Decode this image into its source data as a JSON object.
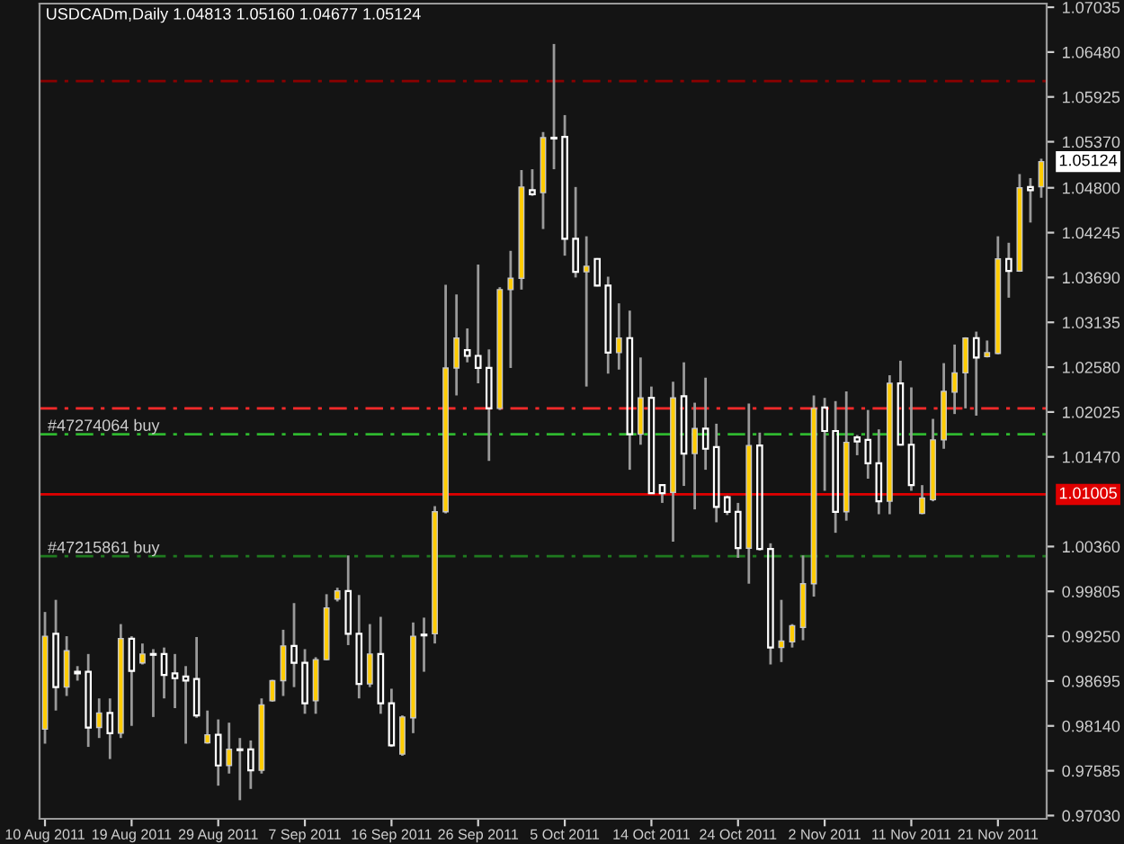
{
  "chart_data": {
    "type": "candlestick",
    "title": "USDCADm,Daily 1.04813 1.05160 1.04677 1.05124",
    "categories": [
      "10 Aug 2011",
      null,
      null,
      null,
      null,
      null,
      null,
      null,
      "19 Aug 2011",
      null,
      null,
      null,
      null,
      null,
      null,
      null,
      "29 Aug 2011",
      null,
      null,
      null,
      null,
      null,
      null,
      null,
      "7 Sep 2011",
      null,
      null,
      null,
      null,
      null,
      null,
      null,
      "16 Sep 2011",
      null,
      null,
      null,
      null,
      null,
      null,
      null,
      "26 Sep 2011",
      null,
      null,
      null,
      null,
      null,
      null,
      null,
      "5 Oct 2011",
      null,
      null,
      null,
      null,
      null,
      null,
      null,
      "14 Oct 2011",
      null,
      null,
      null,
      null,
      null,
      null,
      null,
      "24 Oct 2011",
      null,
      null,
      null,
      null,
      null,
      null,
      null,
      "2 Nov 2011",
      null,
      null,
      null,
      null,
      null,
      null,
      null,
      "11 Nov 2011",
      null,
      null,
      null,
      null,
      null,
      null,
      null,
      "21 Nov 2011",
      null,
      null,
      null,
      null
    ],
    "ohlc": [
      [
        0.981,
        0.9955,
        0.9792,
        0.9925
      ],
      [
        0.9928,
        0.997,
        0.9833,
        0.9862
      ],
      [
        0.9862,
        0.9925,
        0.9851,
        0.9907
      ],
      [
        0.9881,
        0.9888,
        0.987,
        0.9879
      ],
      [
        0.9881,
        0.9903,
        0.9788,
        0.9812
      ],
      [
        0.9812,
        0.9848,
        0.9799,
        0.983
      ],
      [
        0.983,
        0.9848,
        0.9773,
        0.9805
      ],
      [
        0.9805,
        0.994,
        0.9799,
        0.9922
      ],
      [
        0.9922,
        0.9925,
        0.9814,
        0.9882
      ],
      [
        0.9892,
        0.9916,
        0.989,
        0.9903
      ],
      [
        0.9903,
        0.9909,
        0.9825,
        0.9902
      ],
      [
        0.9903,
        0.9911,
        0.9848,
        0.9877
      ],
      [
        0.9879,
        0.9903,
        0.9836,
        0.9873
      ],
      [
        0.9875,
        0.9888,
        0.9792,
        0.987
      ],
      [
        0.9872,
        0.9924,
        0.9824,
        0.9827
      ],
      [
        0.9793,
        0.9833,
        0.9792,
        0.9803
      ],
      [
        0.9803,
        0.9822,
        0.974,
        0.9765
      ],
      [
        0.9765,
        0.9818,
        0.9755,
        0.9785
      ],
      [
        0.9785,
        0.9799,
        0.9722,
        0.9784
      ],
      [
        0.9785,
        0.9796,
        0.9736,
        0.9759
      ],
      [
        0.9759,
        0.9848,
        0.9755,
        0.984
      ],
      [
        0.9845,
        0.9871,
        0.9844,
        0.987
      ],
      [
        0.987,
        0.9933,
        0.9851,
        0.9913
      ],
      [
        0.9913,
        0.9966,
        0.9862,
        0.9892
      ],
      [
        0.9892,
        0.9909,
        0.9829,
        0.9842
      ],
      [
        0.9845,
        0.9899,
        0.9829,
        0.9896
      ],
      [
        0.9896,
        0.9977,
        0.9895,
        0.996
      ],
      [
        0.9971,
        0.9985,
        0.9968,
        0.9981
      ],
      [
        0.9981,
        1.0025,
        0.9914,
        0.9928
      ],
      [
        0.9928,
        0.9976,
        0.9848,
        0.9866
      ],
      [
        0.9866,
        0.994,
        0.9862,
        0.9903
      ],
      [
        0.9903,
        0.9949,
        0.9829,
        0.9842
      ],
      [
        0.9842,
        0.986,
        0.9788,
        0.979
      ],
      [
        0.9779,
        0.9827,
        0.9777,
        0.9825
      ],
      [
        0.9824,
        0.9942,
        0.9805,
        0.9925
      ],
      [
        0.9927,
        0.9948,
        0.9881,
        0.9926
      ],
      [
        0.9928,
        1.0086,
        0.9916,
        1.0079
      ],
      [
        1.0079,
        1.036,
        1.0077,
        1.0257
      ],
      [
        1.0257,
        1.0348,
        1.0223,
        1.0294
      ],
      [
        1.0279,
        1.0306,
        1.0264,
        1.0272
      ],
      [
        1.0272,
        1.0385,
        1.0238,
        1.0257
      ],
      [
        1.0257,
        1.028,
        1.0142,
        1.0207
      ],
      [
        1.0207,
        1.0357,
        1.0205,
        1.0354
      ],
      [
        1.0354,
        1.0402,
        1.0257,
        1.0368
      ],
      [
        1.0368,
        1.0502,
        1.0354,
        1.0481
      ],
      [
        1.0477,
        1.0503,
        1.047,
        1.0472
      ],
      [
        1.0474,
        1.0549,
        1.0429,
        1.0542
      ],
      [
        1.0542,
        1.0658,
        1.0503,
        1.0541
      ],
      [
        1.0543,
        1.057,
        1.0396,
        1.0417
      ],
      [
        1.0417,
        1.0481,
        1.0369,
        1.0376
      ],
      [
        1.0376,
        1.042,
        1.0234,
        1.0383
      ],
      [
        1.0392,
        1.0393,
        1.0358,
        1.0359
      ],
      [
        1.0359,
        1.037,
        1.025,
        1.0276
      ],
      [
        1.0276,
        1.0337,
        1.0255,
        1.0294
      ],
      [
        1.0294,
        1.0328,
        1.0131,
        1.0175
      ],
      [
        1.0175,
        1.027,
        1.0162,
        1.022
      ],
      [
        1.022,
        1.0234,
        1.0101,
        1.0102
      ],
      [
        1.0112,
        1.0113,
        1.009,
        1.0102
      ],
      [
        1.0103,
        1.024,
        1.0042,
        1.022
      ],
      [
        1.0222,
        1.0264,
        1.0111,
        1.0151
      ],
      [
        1.0151,
        1.0214,
        1.0082,
        1.0182
      ],
      [
        1.0182,
        1.0245,
        1.0131,
        1.0157
      ],
      [
        1.0159,
        1.0188,
        1.0066,
        1.0085
      ],
      [
        1.0097,
        1.0099,
        1.0075,
        1.0079
      ],
      [
        1.0079,
        1.009,
        1.0022,
        1.0034
      ],
      [
        1.0034,
        1.0213,
        0.999,
        1.0161
      ],
      [
        1.0161,
        1.0177,
        1.0031,
        1.0033
      ],
      [
        1.0033,
        1.004,
        0.989,
        0.9911
      ],
      [
        0.9911,
        0.997,
        0.9893,
        0.9919
      ],
      [
        0.9918,
        0.994,
        0.9911,
        0.9938
      ],
      [
        0.9936,
        1.0025,
        0.992,
        0.999
      ],
      [
        0.999,
        1.0223,
        0.9974,
        1.0207
      ],
      [
        1.0208,
        1.022,
        1.0105,
        1.0179
      ],
      [
        1.0179,
        1.0216,
        1.0053,
        1.0079
      ],
      [
        1.0079,
        1.0228,
        1.0068,
        1.0165
      ],
      [
        1.0171,
        1.0174,
        1.0149,
        1.0166
      ],
      [
        1.0168,
        1.0205,
        1.012,
        1.0139
      ],
      [
        1.0139,
        1.0181,
        1.0076,
        1.0092
      ],
      [
        1.0092,
        1.0248,
        1.0076,
        1.0238
      ],
      [
        1.0238,
        1.0266,
        1.0161,
        1.0162
      ],
      [
        1.0162,
        1.0233,
        1.0105,
        1.0112
      ],
      [
        1.0077,
        1.0112,
        1.0076,
        1.0096
      ],
      [
        1.0094,
        1.0194,
        1.0092,
        1.0168
      ],
      [
        1.0168,
        1.0263,
        1.0157,
        1.0228
      ],
      [
        1.0227,
        1.0286,
        1.02,
        1.0251
      ],
      [
        1.0251,
        1.0295,
        1.0207,
        1.0294
      ],
      [
        1.0294,
        1.0302,
        1.0198,
        1.027
      ],
      [
        1.0271,
        1.0291,
        1.027,
        1.0276
      ],
      [
        1.0275,
        1.042,
        1.0274,
        1.0392
      ],
      [
        1.0392,
        1.0412,
        1.0344,
        1.0377
      ],
      [
        1.0377,
        1.0497,
        1.0376,
        1.048
      ],
      [
        1.0481,
        1.0492,
        1.0437,
        1.0477
      ],
      [
        1.04813,
        1.0516,
        1.04677,
        1.05124
      ]
    ],
    "colors": [
      "#ffcc00",
      "#ffffff",
      "#ffcc00",
      "#ffffff",
      "#ffffff",
      "#ffcc00",
      "#ffffff",
      "#ffcc00",
      "#ffffff",
      "#ffcc00",
      "#ffffff",
      "#ffffff",
      "#ffffff",
      "#ffffff",
      "#ffffff",
      "#ffcc00",
      "#ffffff",
      "#ffcc00",
      "#ffffff",
      "#ffffff",
      "#ffcc00",
      "#ffcc00",
      "#ffcc00",
      "#ffffff",
      "#ffffff",
      "#ffcc00",
      "#ffcc00",
      "#ffcc00",
      "#ffffff",
      "#ffffff",
      "#ffcc00",
      "#ffffff",
      "#ffffff",
      "#ffcc00",
      "#ffcc00",
      "#ffffff",
      "#ffcc00",
      "#ffcc00",
      "#ffcc00",
      "#ffffff",
      "#ffffff",
      "#ffffff",
      "#ffcc00",
      "#ffcc00",
      "#ffcc00",
      "#ffffff",
      "#ffcc00",
      "#ffffff",
      "#ffffff",
      "#ffffff",
      "#ffcc00",
      "#ffffff",
      "#ffffff",
      "#ffcc00",
      "#ffffff",
      "#ffcc00",
      "#ffffff",
      "#ffffff",
      "#ffcc00",
      "#ffffff",
      "#ffcc00",
      "#ffffff",
      "#ffffff",
      "#ffffff",
      "#ffffff",
      "#ffcc00",
      "#ffffff",
      "#ffffff",
      "#ffcc00",
      "#ffcc00",
      "#ffcc00",
      "#ffcc00",
      "#ffffff",
      "#ffffff",
      "#ffcc00",
      "#ffffff",
      "#ffffff",
      "#ffffff",
      "#ffcc00",
      "#ffffff",
      "#ffffff",
      "#ffcc00",
      "#ffcc00",
      "#ffcc00",
      "#ffcc00",
      "#ffcc00",
      "#ffffff",
      "#ffcc00",
      "#ffcc00",
      "#ffffff",
      "#ffcc00",
      "#ffffff",
      "#ffcc00"
    ],
    "ylim": [
      0.9699,
      1.0708
    ],
    "yticks": [
      1.07035,
      {
        "value": 1.0648,
        "label": "1.06480"
      },
      1.05925,
      {
        "value": 1.0537,
        "label": "1.05370"
      },
      {
        "value": 1.048,
        "label": "1.04800"
      },
      1.04245,
      {
        "value": 1.0369,
        "label": "1.03690"
      },
      1.03135,
      {
        "value": 1.0258,
        "label": "1.02580"
      },
      1.02025,
      {
        "value": 1.0147,
        "label": "1.01470"
      },
      {
        "value": 1.0036,
        "label": "1.00360"
      },
      0.99805,
      {
        "value": 0.9925,
        "label": "0.99250"
      },
      0.98695,
      {
        "value": 0.9814,
        "label": "0.98140"
      },
      0.97585,
      {
        "value": 0.9703,
        "label": "0.97030"
      }
    ],
    "ref_lines": [
      {
        "axis": "y",
        "value": 1.0612,
        "color": "#8b0000",
        "line_style": "dashdot"
      },
      {
        "axis": "y",
        "value": 1.0207,
        "color": "#ff2a2a",
        "line_style": "dashdot"
      },
      {
        "axis": "y",
        "value": 1.0175,
        "label": "#47274064 buy",
        "color": "#2fb82f",
        "line_style": "dashdot"
      },
      {
        "axis": "y",
        "value": 1.01005,
        "label": "1.01005",
        "color": "#e00000",
        "line_style": "solid"
      },
      {
        "axis": "y",
        "value": 1.0024,
        "label": "#47215861 buy",
        "color": "#1f7a1f",
        "line_style": "dashdot"
      }
    ],
    "annotations": [
      "1.05124"
    ]
  }
}
